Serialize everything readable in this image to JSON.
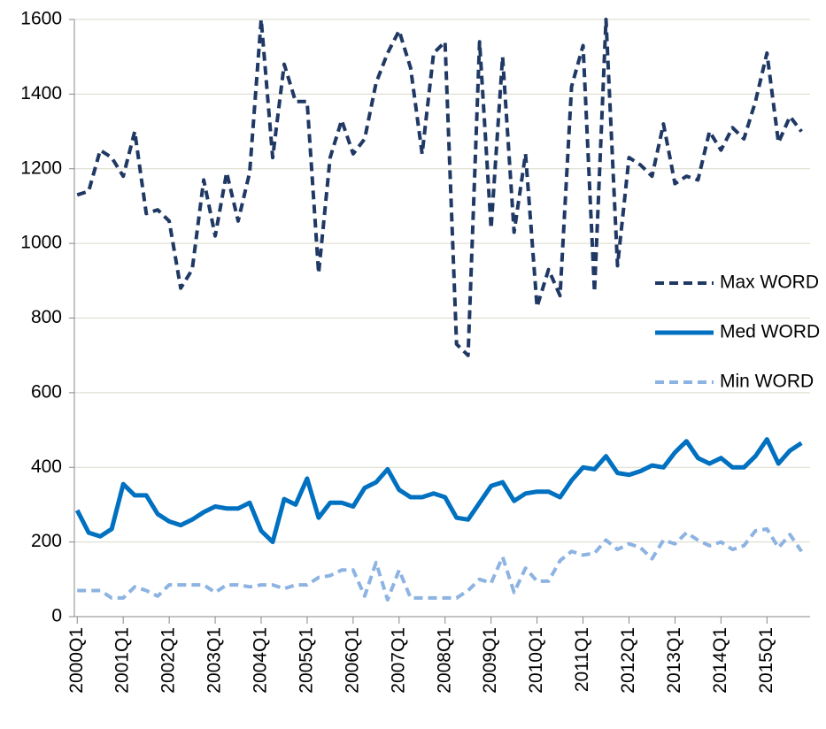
{
  "chart_data": {
    "type": "line",
    "categories": [
      "2000Q1",
      null,
      null,
      null,
      "2001Q1",
      null,
      null,
      null,
      "2002Q1",
      null,
      null,
      null,
      "2003Q1",
      null,
      null,
      null,
      "2004Q1",
      null,
      null,
      null,
      "2005Q1",
      null,
      null,
      null,
      "2006Q1",
      null,
      null,
      null,
      "2007Q1",
      null,
      null,
      null,
      "2008Q1",
      null,
      null,
      null,
      "2009Q1",
      null,
      null,
      null,
      "2010Q1",
      null,
      null,
      null,
      "2011Q1",
      null,
      null,
      null,
      "2012Q1",
      null,
      null,
      null,
      "2013Q1",
      null,
      null,
      null,
      "2014Q1",
      null,
      null,
      null,
      "2015Q1",
      null,
      null,
      null
    ],
    "series": [
      {
        "name": "Max WORD",
        "color": "#1f3864",
        "dashed": true,
        "width": 4,
        "values": [
          1130,
          1140,
          1250,
          1230,
          1180,
          1300,
          1080,
          1090,
          1060,
          880,
          930,
          1170,
          1020,
          1190,
          1060,
          1190,
          1600,
          1230,
          1480,
          1380,
          1380,
          920,
          1230,
          1330,
          1240,
          1280,
          1430,
          1510,
          1570,
          1470,
          1240,
          1510,
          1540,
          730,
          700,
          1540,
          1040,
          1500,
          1030,
          1240,
          830,
          930,
          860,
          1420,
          1530,
          870,
          1600,
          940,
          1230,
          1210,
          1180,
          1320,
          1160,
          1180,
          1170,
          1300,
          1250,
          1310,
          1280,
          1380,
          1510,
          1270,
          1340,
          1300
        ]
      },
      {
        "name": "Med WORD",
        "color": "#0070c0",
        "dashed": false,
        "width": 5,
        "values": [
          285,
          225,
          215,
          235,
          355,
          325,
          325,
          275,
          255,
          245,
          260,
          280,
          295,
          290,
          290,
          305,
          230,
          200,
          315,
          300,
          370,
          265,
          305,
          305,
          295,
          345,
          360,
          395,
          340,
          320,
          320,
          330,
          320,
          265,
          260,
          305,
          350,
          360,
          310,
          330,
          335,
          335,
          320,
          365,
          400,
          395,
          430,
          385,
          380,
          390,
          405,
          400,
          440,
          470,
          425,
          410,
          425,
          400,
          400,
          430,
          475,
          410,
          445,
          465
        ]
      },
      {
        "name": "Min WORD",
        "color": "#8db3e2",
        "dashed": true,
        "width": 4,
        "values": [
          70,
          70,
          70,
          50,
          50,
          80,
          70,
          55,
          85,
          85,
          85,
          85,
          65,
          85,
          85,
          80,
          85,
          85,
          75,
          85,
          85,
          105,
          110,
          125,
          125,
          55,
          145,
          45,
          125,
          50,
          50,
          50,
          50,
          50,
          70,
          100,
          90,
          160,
          65,
          130,
          95,
          95,
          150,
          175,
          165,
          170,
          205,
          180,
          195,
          185,
          155,
          205,
          195,
          225,
          205,
          190,
          200,
          180,
          190,
          230,
          235,
          185,
          220,
          175
        ]
      }
    ],
    "ylim": [
      0,
      1600
    ],
    "yticks": [
      0,
      200,
      400,
      600,
      800,
      1000,
      1200,
      1400,
      1600
    ],
    "grid": true,
    "legend": "right"
  }
}
